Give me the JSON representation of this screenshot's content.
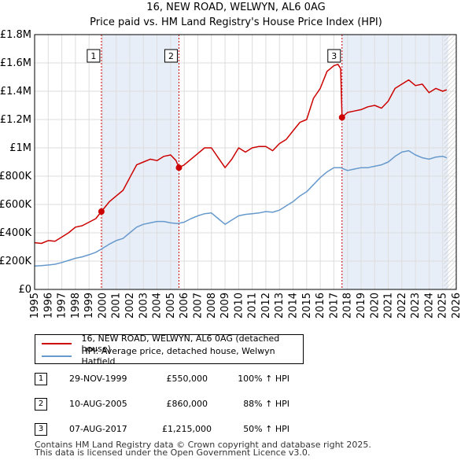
{
  "title_line1": "16, NEW ROAD, WELWYN, AL6 0AG",
  "title_line2": "Price paid vs. HM Land Registry's House Price Index (HPI)",
  "colors": {
    "property": "#cc0000",
    "hpi": "#6699cc",
    "shade": "#e8eef8",
    "grid": "#dddddd"
  },
  "legend": {
    "property": "16, NEW ROAD, WELWYN, AL6 0AG (detached house)",
    "hpi": "HPI: Average price, detached house, Welwyn Hatfield"
  },
  "sales": [
    {
      "num": "1",
      "date": "29-NOV-1999",
      "price": "£550,000",
      "hpi": "100% ↑ HPI"
    },
    {
      "num": "2",
      "date": "10-AUG-2005",
      "price": "£860,000",
      "hpi": "88% ↑ HPI"
    },
    {
      "num": "3",
      "date": "07-AUG-2017",
      "price": "£1,215,000",
      "hpi": "50% ↑ HPI"
    }
  ],
  "footer_line1": "Contains HM Land Registry data © Crown copyright and database right 2025.",
  "footer_line2": "This data is licensed under the Open Government Licence v3.0.",
  "chart_data": {
    "type": "line",
    "title": "16, NEW ROAD, WELWYN, AL6 0AG — Price paid vs. HM Land Registry's House Price Index (HPI)",
    "xlim": [
      1995,
      2026
    ],
    "ylim": [
      0,
      1800000
    ],
    "x_ticks": [
      1995,
      1996,
      1997,
      1998,
      1999,
      2000,
      2001,
      2002,
      2003,
      2004,
      2005,
      2006,
      2007,
      2008,
      2009,
      2010,
      2011,
      2012,
      2013,
      2014,
      2015,
      2016,
      2017,
      2018,
      2019,
      2020,
      2021,
      2022,
      2023,
      2024,
      2025,
      2026
    ],
    "y_ticks": [
      {
        "value": 0,
        "label": "£0"
      },
      {
        "value": 200000,
        "label": "£200K"
      },
      {
        "value": 400000,
        "label": "£400K"
      },
      {
        "value": 600000,
        "label": "£600K"
      },
      {
        "value": 800000,
        "label": "£800K"
      },
      {
        "value": 1000000,
        "label": "£1M"
      },
      {
        "value": 1200000,
        "label": "£1.2M"
      },
      {
        "value": 1400000,
        "label": "£1.4M"
      },
      {
        "value": 1600000,
        "label": "£1.6M"
      },
      {
        "value": 1800000,
        "label": "£1.8M"
      }
    ],
    "shaded_ranges": [
      [
        1999.91,
        2005.61
      ],
      [
        2017.6,
        2025.4
      ]
    ],
    "hatched_from": 2025.1,
    "sale_markers": [
      {
        "label": "1",
        "x": 1999.91,
        "y": 550000
      },
      {
        "label": "2",
        "x": 2005.61,
        "y": 860000
      },
      {
        "label": "3",
        "x": 2017.6,
        "y": 1215000
      }
    ],
    "series": [
      {
        "name": "16, NEW ROAD, WELWYN, AL6 0AG (detached house)",
        "color": "#cc0000",
        "x": [
          1995.0,
          1995.5,
          1996.0,
          1996.5,
          1997.0,
          1997.5,
          1998.0,
          1998.5,
          1999.0,
          1999.5,
          1999.91,
          2000.5,
          2001.0,
          2001.5,
          2002.0,
          2002.5,
          2003.0,
          2003.5,
          2004.0,
          2004.5,
          2005.0,
          2005.4,
          2005.61,
          2006.0,
          2006.5,
          2007.0,
          2007.5,
          2008.0,
          2008.5,
          2009.0,
          2009.5,
          2010.0,
          2010.5,
          2011.0,
          2011.5,
          2012.0,
          2012.5,
          2013.0,
          2013.5,
          2014.0,
          2014.5,
          2015.0,
          2015.5,
          2016.0,
          2016.5,
          2017.0,
          2017.3,
          2017.5,
          2017.6,
          2018.0,
          2018.5,
          2019.0,
          2019.5,
          2020.0,
          2020.5,
          2021.0,
          2021.5,
          2022.0,
          2022.5,
          2023.0,
          2023.5,
          2024.0,
          2024.5,
          2025.0,
          2025.3
        ],
        "values": [
          330000,
          325000,
          345000,
          340000,
          370000,
          400000,
          440000,
          450000,
          475000,
          500000,
          550000,
          620000,
          660000,
          700000,
          790000,
          880000,
          900000,
          920000,
          910000,
          940000,
          950000,
          910000,
          860000,
          880000,
          920000,
          960000,
          1000000,
          1000000,
          930000,
          860000,
          920000,
          1000000,
          970000,
          1000000,
          1010000,
          1010000,
          980000,
          1030000,
          1060000,
          1120000,
          1180000,
          1200000,
          1350000,
          1420000,
          1540000,
          1580000,
          1590000,
          1560000,
          1215000,
          1250000,
          1260000,
          1270000,
          1290000,
          1300000,
          1280000,
          1330000,
          1420000,
          1450000,
          1480000,
          1440000,
          1450000,
          1390000,
          1420000,
          1400000,
          1410000
        ]
      },
      {
        "name": "HPI: Average price, detached house, Welwyn Hatfield",
        "color": "#6699cc",
        "x": [
          1995.0,
          1995.5,
          1996.0,
          1996.5,
          1997.0,
          1997.5,
          1998.0,
          1998.5,
          1999.0,
          1999.5,
          2000.0,
          2000.5,
          2001.0,
          2001.5,
          2002.0,
          2002.5,
          2003.0,
          2003.5,
          2004.0,
          2004.5,
          2005.0,
          2005.5,
          2006.0,
          2006.5,
          2007.0,
          2007.5,
          2008.0,
          2008.5,
          2009.0,
          2009.5,
          2010.0,
          2010.5,
          2011.0,
          2011.5,
          2012.0,
          2012.5,
          2013.0,
          2013.5,
          2014.0,
          2014.5,
          2015.0,
          2015.5,
          2016.0,
          2016.5,
          2017.0,
          2017.5,
          2018.0,
          2018.5,
          2019.0,
          2019.5,
          2020.0,
          2020.5,
          2021.0,
          2021.5,
          2022.0,
          2022.5,
          2023.0,
          2023.5,
          2024.0,
          2024.5,
          2025.0,
          2025.3
        ],
        "values": [
          165000,
          168000,
          172000,
          178000,
          190000,
          205000,
          220000,
          230000,
          245000,
          262000,
          290000,
          320000,
          345000,
          360000,
          400000,
          440000,
          460000,
          470000,
          480000,
          480000,
          470000,
          465000,
          475000,
          500000,
          520000,
          535000,
          540000,
          500000,
          460000,
          490000,
          520000,
          530000,
          535000,
          540000,
          550000,
          545000,
          560000,
          590000,
          620000,
          660000,
          690000,
          740000,
          790000,
          830000,
          860000,
          860000,
          840000,
          850000,
          860000,
          860000,
          870000,
          880000,
          900000,
          940000,
          970000,
          980000,
          950000,
          930000,
          920000,
          935000,
          940000,
          930000
        ]
      }
    ]
  }
}
